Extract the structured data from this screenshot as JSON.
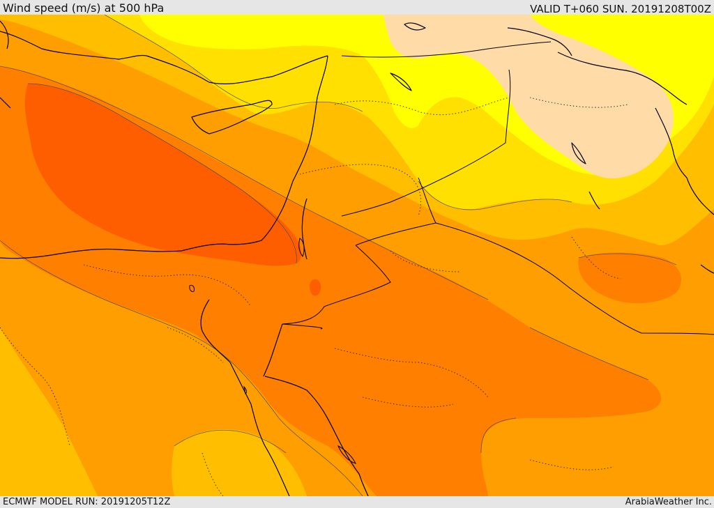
{
  "header": {
    "title": "Wind speed (m/s) at 500 hPa",
    "valid_time": "VALID T+060 SUN. 20191208T00Z"
  },
  "footer": {
    "model_run": "ECMWF MODEL RUN: 20191205T12Z",
    "credit": "ArabiaWeather Inc."
  },
  "map": {
    "field": "wind-speed-shading",
    "colors": {
      "lightest": "#ffdba8",
      "yellow": "#ffff00",
      "gold": "#ffe000",
      "amber": "#ffbf00",
      "orange_light": "#ff9e00",
      "orange": "#ff7f00",
      "red_orange": "#ff5e00",
      "coast": "#000000",
      "border_dotted": "#222222"
    }
  }
}
